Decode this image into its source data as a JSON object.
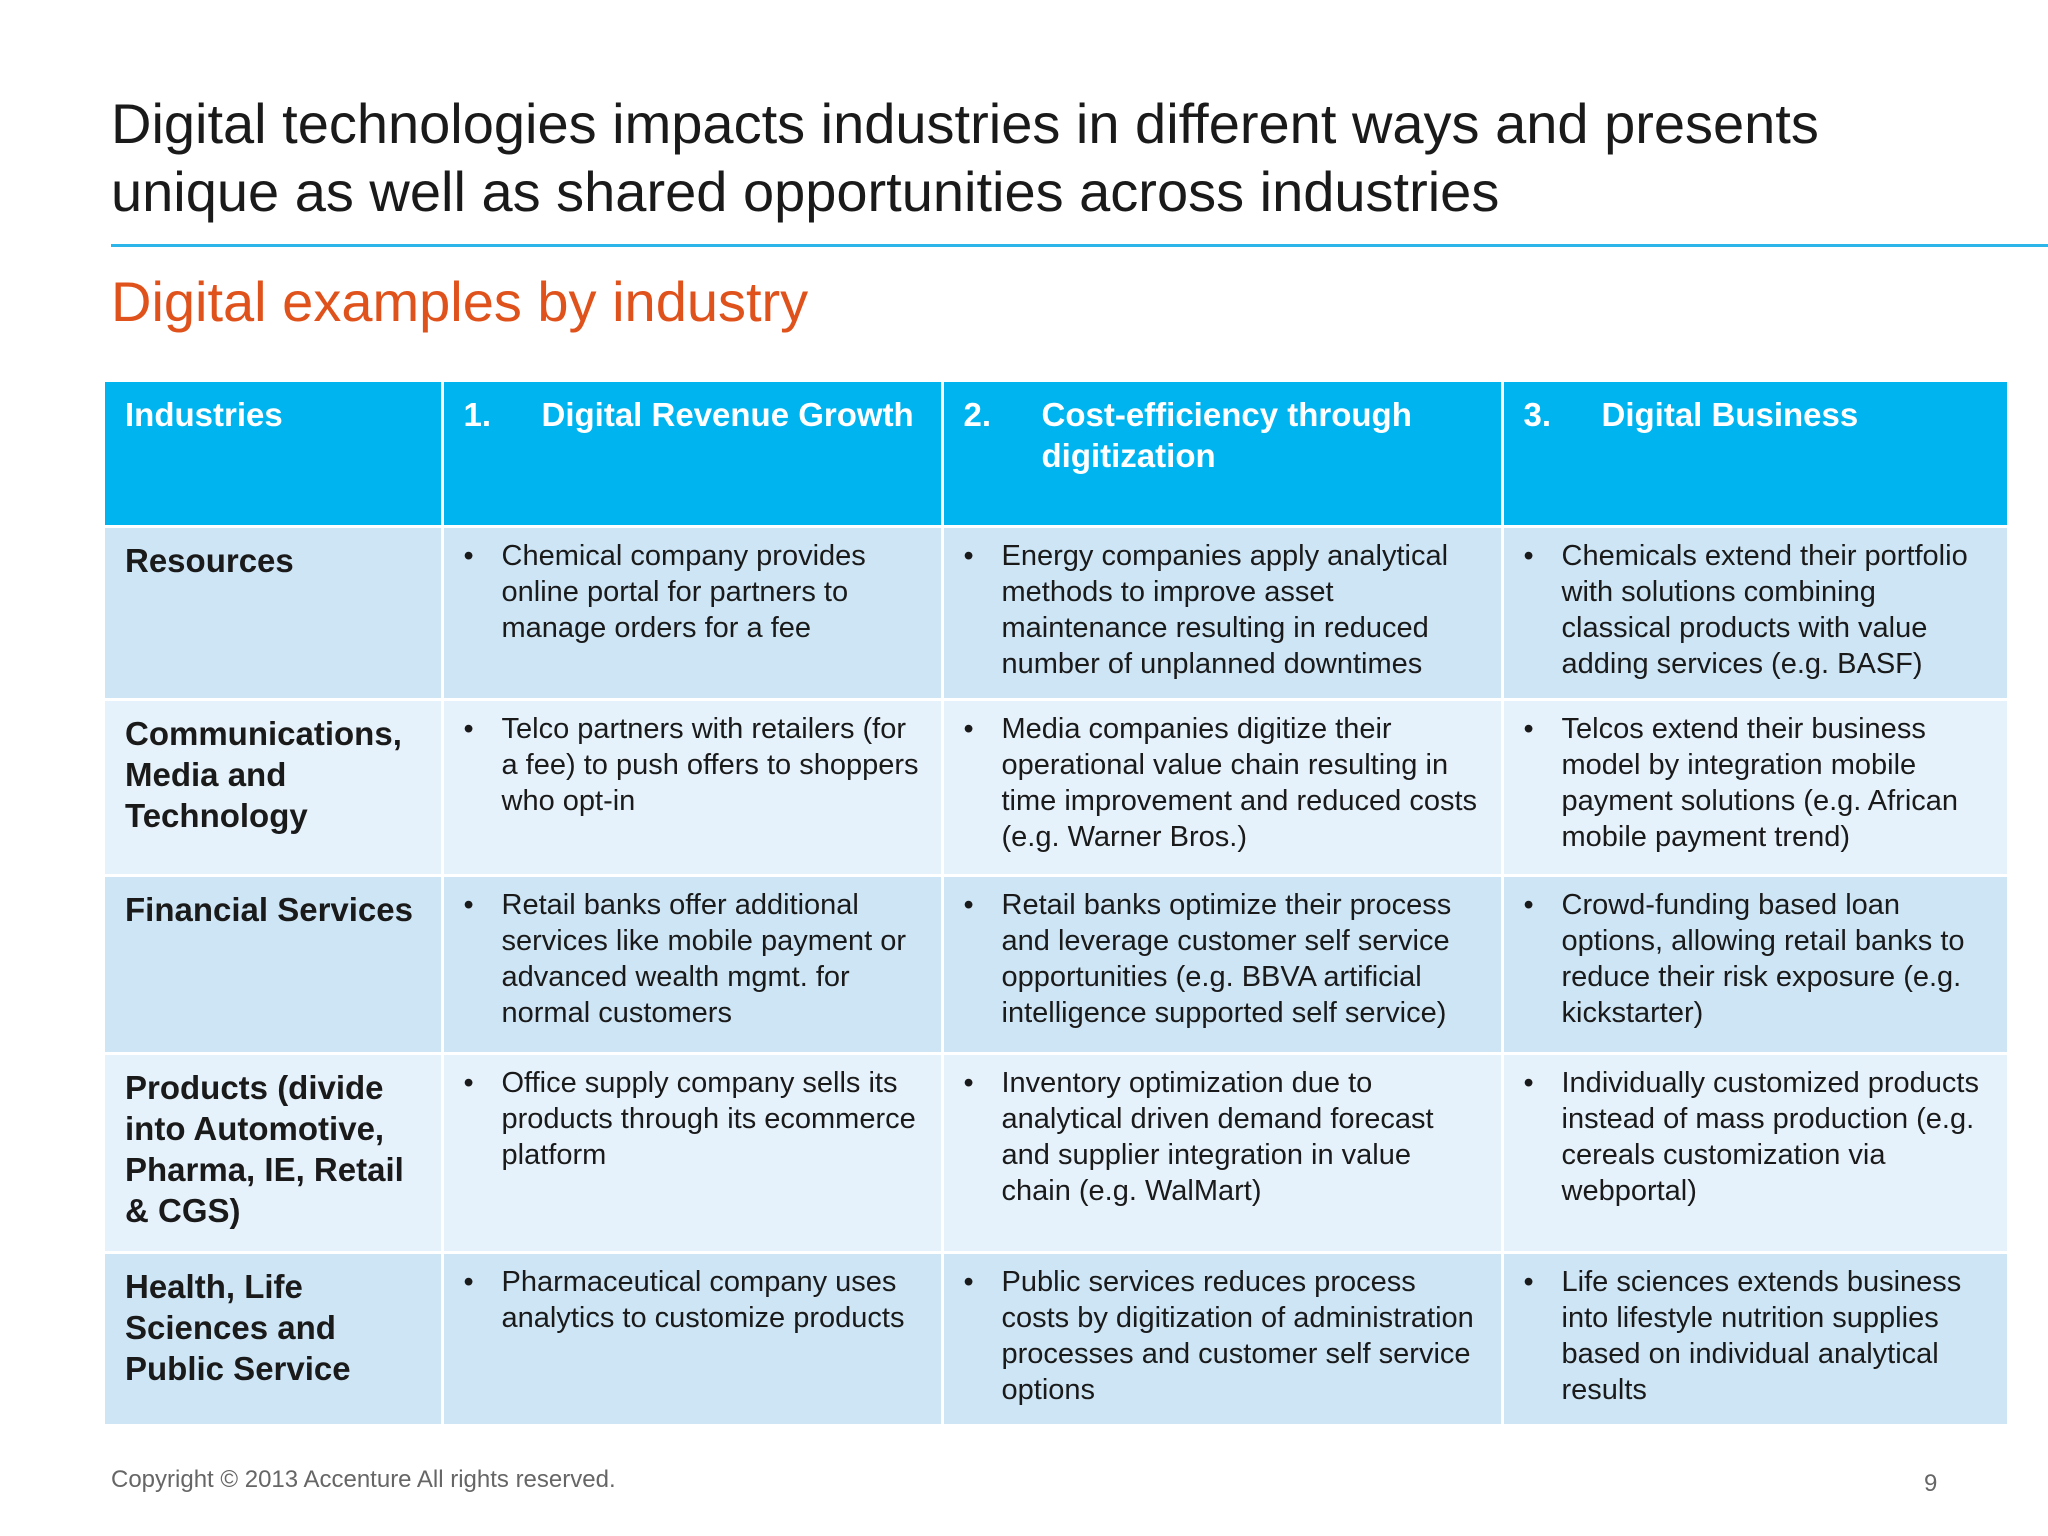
{
  "slide": {
    "title": "Digital technologies impacts industries in different ways and presents unique as well as shared opportunities across industries",
    "subtitle": "Digital examples by industry",
    "accent_color": "#00b4f0",
    "subtitle_color": "#e0521b",
    "footer": "Copyright © 2013 Accenture  All rights reserved.",
    "page_number": "9"
  },
  "table": {
    "headers": [
      {
        "num": "",
        "label": "Industries"
      },
      {
        "num": "1.",
        "label": "Digital Revenue Growth"
      },
      {
        "num": "2.",
        "label": "Cost-efficiency through digitization"
      },
      {
        "num": "3.",
        "label": "Digital Business"
      }
    ],
    "bullet": "•",
    "rows": [
      {
        "industry": "Resources",
        "cells": [
          "Chemical company provides online portal for partners to manage orders for a fee",
          "Energy companies apply analytical methods to improve asset maintenance resulting in reduced number of unplanned downtimes",
          "Chemicals extend their portfolio with solutions combining classical products with value adding services (e.g. BASF)"
        ]
      },
      {
        "industry": "Communications, Media and Technology",
        "cells": [
          "Telco partners with retailers (for a fee) to push offers to shoppers who opt-in",
          "Media companies digitize their operational value chain resulting in time improvement and reduced costs (e.g. Warner Bros.)",
          "Telcos extend their business model by integration mobile payment solutions (e.g. African mobile payment trend)"
        ]
      },
      {
        "industry": "Financial Services",
        "cells": [
          "Retail banks offer additional services like mobile payment or advanced wealth mgmt. for normal customers",
          "Retail banks optimize their process and leverage customer self service opportunities (e.g. BBVA artificial intelligence supported self service)",
          "Crowd-funding based loan options, allowing retail banks to reduce their risk exposure (e.g. kickstarter)"
        ]
      },
      {
        "industry": "Products (divide into Automotive, Pharma, IE, Retail & CGS)",
        "cells": [
          "Office supply company sells its products through its ecommerce platform",
          "Inventory optimization due to analytical driven demand forecast and supplier integration in value chain (e.g. WalMart)",
          "Individually customized products instead of mass production (e.g. cereals customization via webportal)"
        ]
      },
      {
        "industry": "Health, Life Sciences and Public Service",
        "cells": [
          "Pharmaceutical company uses analytics to customize products",
          "Public services reduces process costs by digitization of administration processes and customer self service options",
          "Life sciences extends business into lifestyle nutrition supplies based on individual analytical results"
        ]
      }
    ]
  }
}
